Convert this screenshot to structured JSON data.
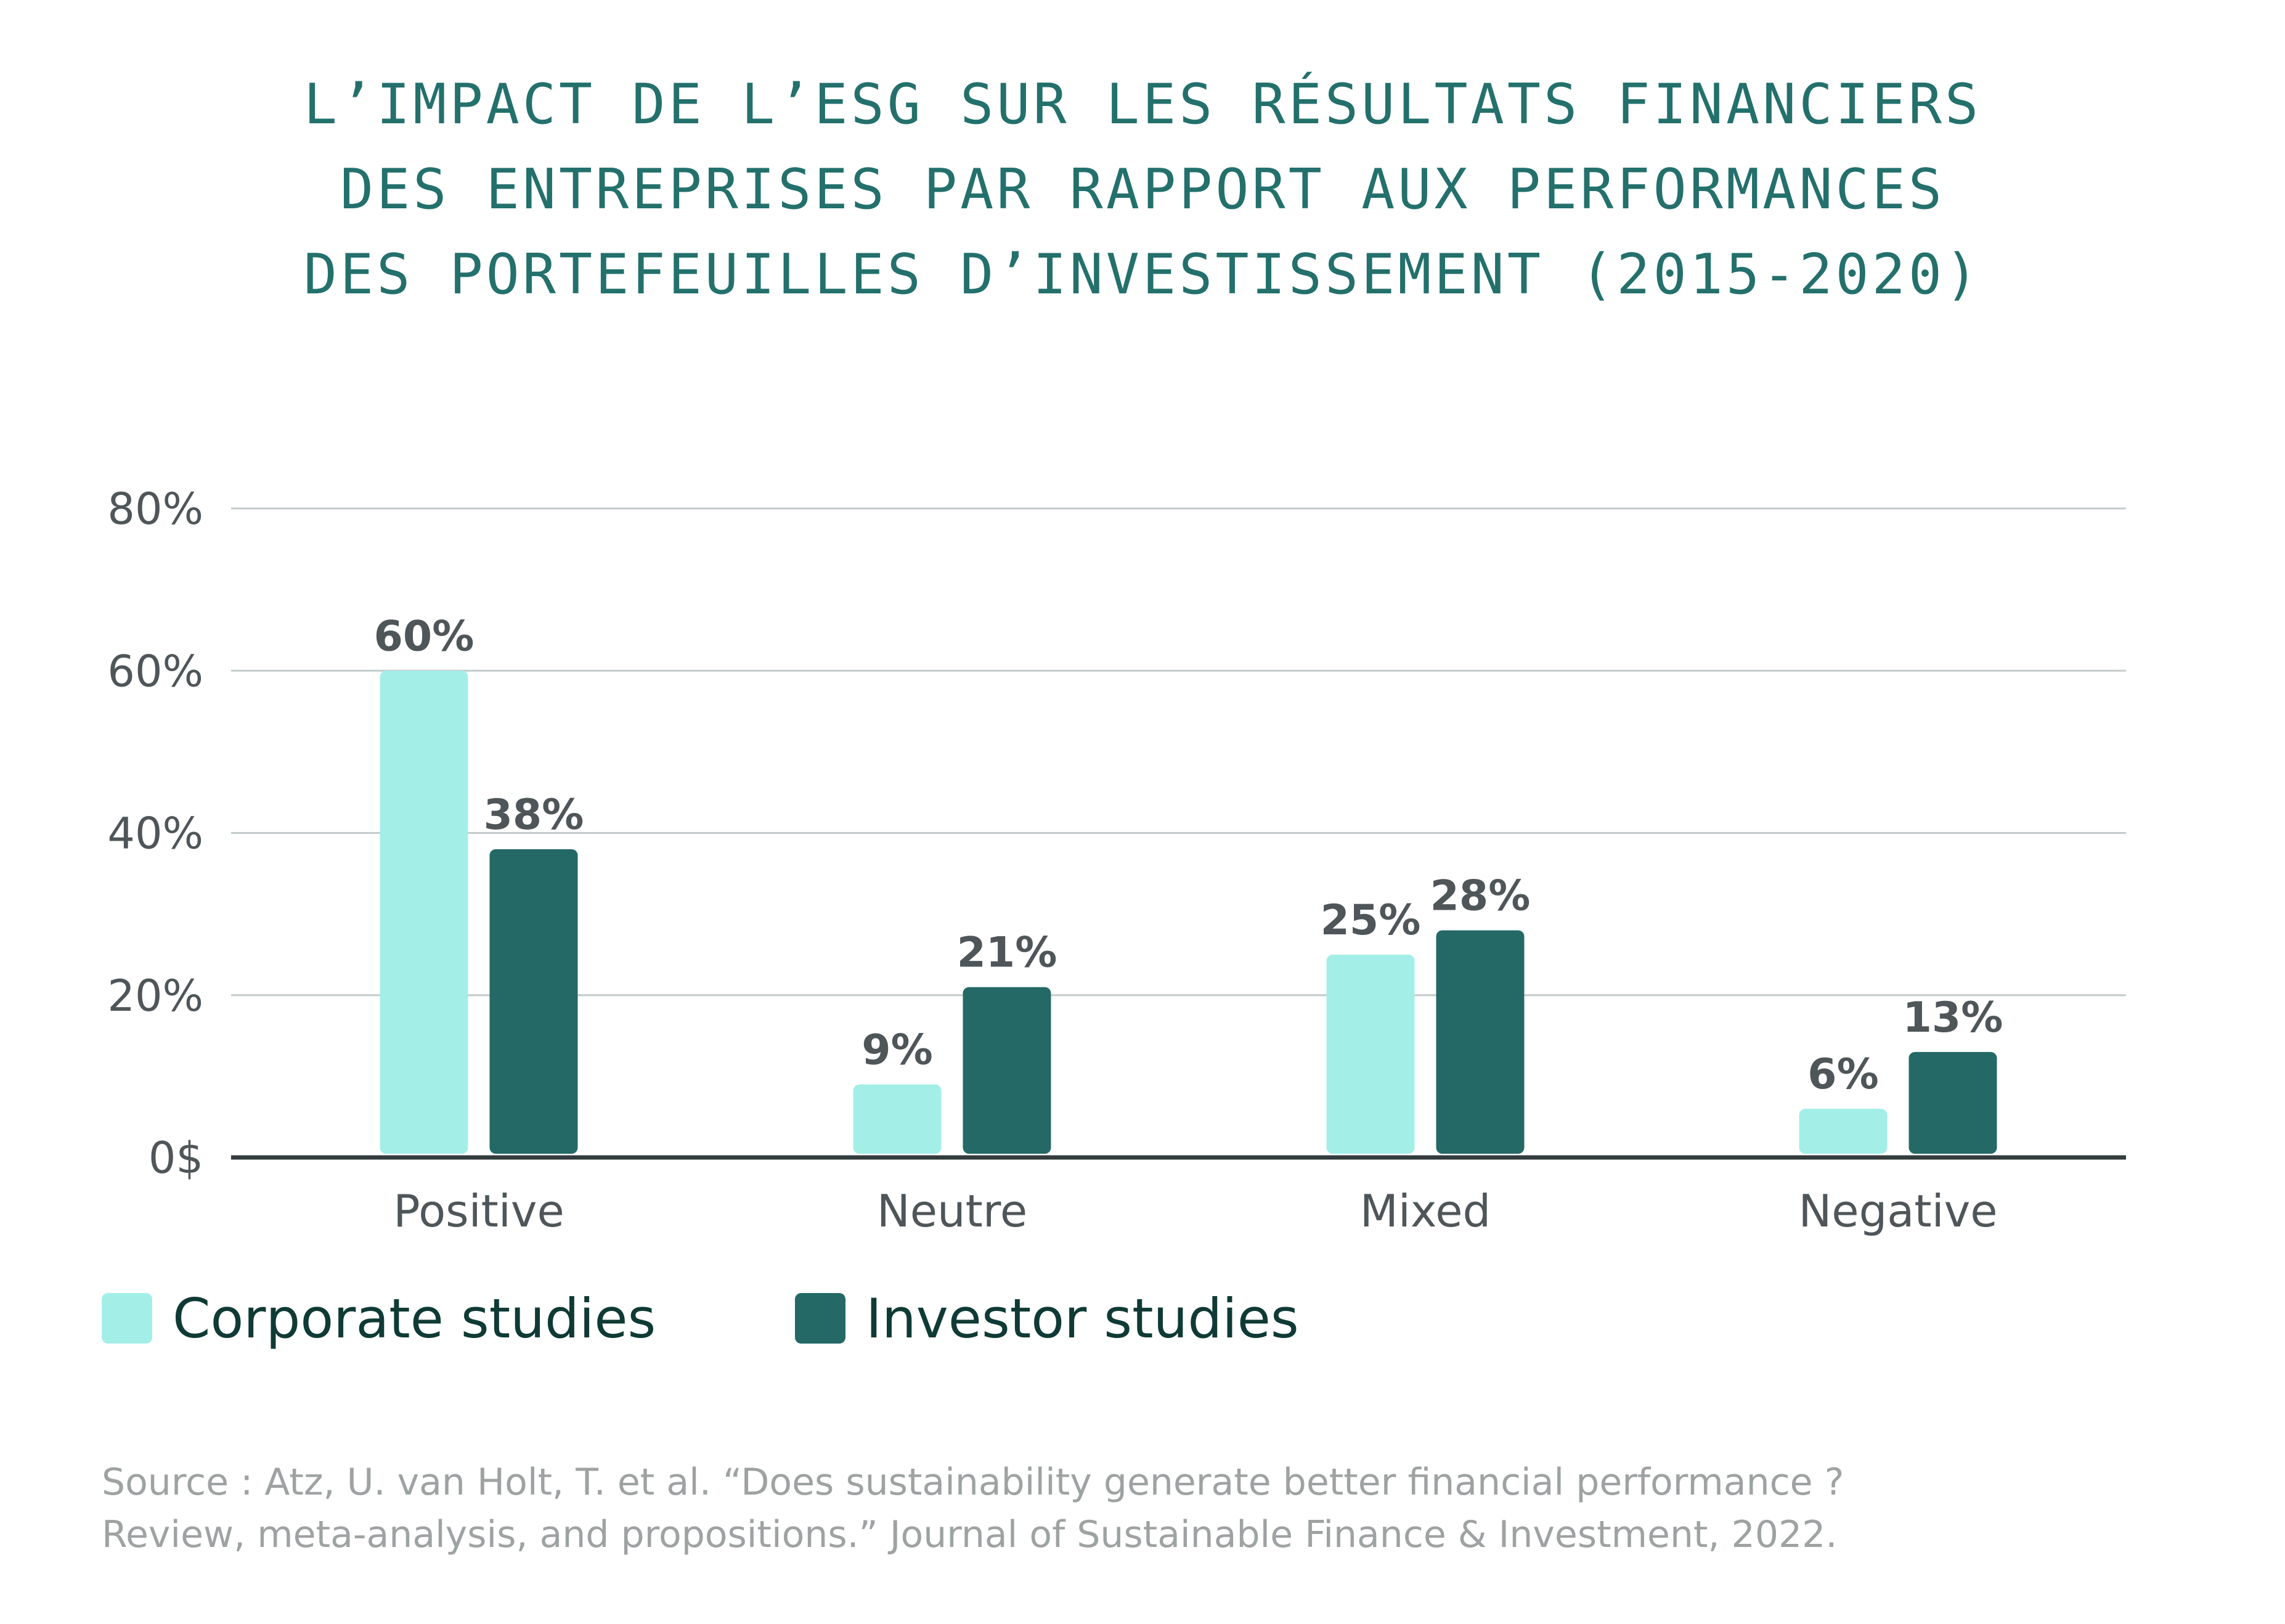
{
  "chart_data": {
    "type": "bar",
    "title_lines": [
      "L’IMPACT DE L’ESG SUR LES RÉSULTATS FINANCIERS",
      "DES ENTREPRISES PAR RAPPORT AUX PERFORMANCES",
      "DES PORTEFEUILLES D’INVESTISSEMENT (2015-2020)"
    ],
    "categories": [
      "Positive",
      "Neutre",
      "Mixed",
      "Negative"
    ],
    "series": [
      {
        "name": "Corporate studies",
        "color": "#a3efe8",
        "values": [
          60,
          9,
          25,
          6
        ],
        "labels": [
          "60%",
          "9%",
          "25%",
          "6%"
        ]
      },
      {
        "name": "Investor studies",
        "color": "#246966",
        "values": [
          38,
          21,
          28,
          13
        ],
        "labels": [
          "38%",
          "21%",
          "28%",
          "13%"
        ]
      }
    ],
    "y_ticks": [
      {
        "value": 0,
        "label": "0$"
      },
      {
        "value": 20,
        "label": "20%"
      },
      {
        "value": 40,
        "label": "40%"
      },
      {
        "value": 60,
        "label": "60%"
      },
      {
        "value": 80,
        "label": "80%"
      }
    ],
    "ylim": [
      0,
      80
    ],
    "xlabel": "",
    "ylabel": "",
    "grid": true,
    "legend_position": "bottom-left",
    "source_lines": [
      "Source :  Atz, U. van Holt, T. et al. “Does sustainability generate better financial performance ?",
      "Review, meta-analysis, and propositions.” Journal of Sustainable Finance & Investment, 2022."
    ]
  },
  "colors": {
    "title": "#23706c",
    "gridline": "#c4cbcc",
    "axis": "#333b3d",
    "text": "#4f5659",
    "source": "#9ea2a3"
  }
}
